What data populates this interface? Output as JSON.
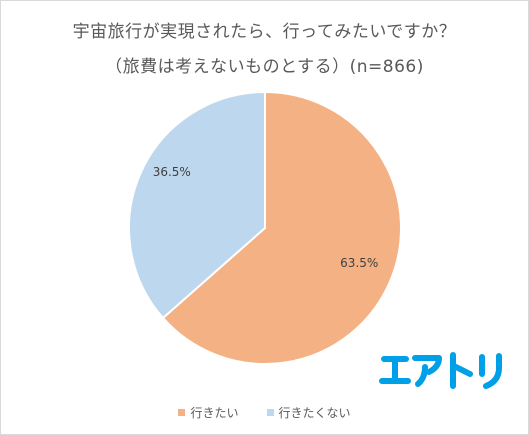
{
  "chart_data": {
    "type": "pie",
    "title": "宇宙旅行が実現されたら、行ってみたいですか？",
    "subtitle": "（旅費は考えないものとする）(n=866)",
    "slices": [
      {
        "label": "行きたい",
        "value": 63.5,
        "value_label": "63.5%",
        "color": "#f4b183"
      },
      {
        "label": "行きたくない",
        "value": 36.5,
        "value_label": "36.5%",
        "color": "#bdd7ee"
      }
    ],
    "legend_position": "bottom"
  },
  "logo": {
    "text": "エアトリ",
    "color": "#00a0e9"
  }
}
